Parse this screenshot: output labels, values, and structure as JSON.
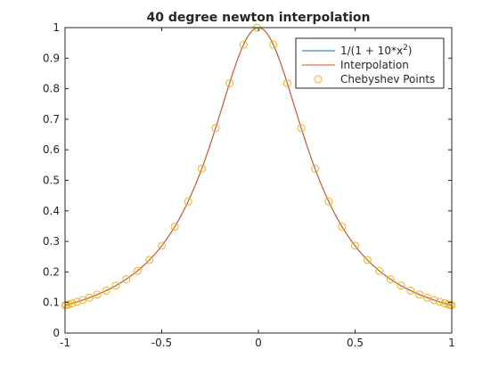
{
  "chart_data": {
    "type": "line",
    "title": "40 degree newton interpolation",
    "xlabel": "",
    "ylabel": "",
    "xlim": [
      -1,
      1
    ],
    "ylim": [
      0,
      1
    ],
    "grid": false,
    "xticks": [
      -1,
      -0.5,
      0,
      0.5,
      1
    ],
    "xtick_labels": [
      "-1",
      "-0.5",
      "0",
      "0.5",
      "1"
    ],
    "yticks": [
      0,
      0.1,
      0.2,
      0.3,
      0.4,
      0.5,
      0.6,
      0.7,
      0.8,
      0.9,
      1
    ],
    "ytick_labels": [
      "0",
      "0.1",
      "0.2",
      "0.3",
      "0.4",
      "0.5",
      "0.6",
      "0.7",
      "0.8",
      "0.9",
      "1"
    ],
    "legend": {
      "placement": "top-right",
      "entries": [
        {
          "label_prefix": "1/(1 + 10*x",
          "label_superscript": "2",
          "label_suffix": ")",
          "style": "line",
          "color": "#0072BD"
        },
        {
          "label": "Interpolation",
          "style": "line",
          "color": "#D95319"
        },
        {
          "label": "Chebyshev Points",
          "style": "marker-circle",
          "color": "#EDB120"
        }
      ]
    },
    "series": [
      {
        "function": "1/(1 + 10*x^2)",
        "style": "line",
        "color": "#0072BD",
        "x_range": [
          -1,
          1
        ]
      },
      {
        "function": "1/(1 + 10*x^2)",
        "style": "line",
        "color": "#D95319",
        "x_range": [
          -1,
          1
        ]
      },
      {
        "style": "marker-circle",
        "color": "#EDB120",
        "x": [
          -0.9992,
          -0.9931,
          -0.9809,
          -0.9626,
          -0.9385,
          -0.9087,
          -0.8734,
          -0.8329,
          -0.7876,
          -0.7376,
          -0.6834,
          -0.6254,
          -0.564,
          -0.4995,
          -0.4326,
          -0.3636,
          -0.293,
          -0.2214,
          -0.1492,
          -0.0769,
          -0.0077,
          0.0769,
          0.1492,
          0.2214,
          0.293,
          0.3636,
          0.4326,
          0.4995,
          0.564,
          0.6254,
          0.6834,
          0.7376,
          0.7876,
          0.8329,
          0.8734,
          0.9087,
          0.9385,
          0.9626,
          0.9809,
          0.9931,
          0.9992
        ],
        "y": [
          0.091,
          0.0921,
          0.0942,
          0.0974,
          0.102,
          0.108,
          0.1159,
          0.126,
          0.1388,
          0.1553,
          0.1764,
          0.2036,
          0.2392,
          0.2861,
          0.3482,
          0.4307,
          0.5381,
          0.6711,
          0.8179,
          0.9442,
          0.9994,
          0.9442,
          0.8179,
          0.6711,
          0.5381,
          0.4307,
          0.3482,
          0.2861,
          0.2392,
          0.2036,
          0.1764,
          0.1553,
          0.1388,
          0.126,
          0.1159,
          0.108,
          0.102,
          0.0974,
          0.0942,
          0.0921,
          0.091
        ]
      }
    ]
  }
}
